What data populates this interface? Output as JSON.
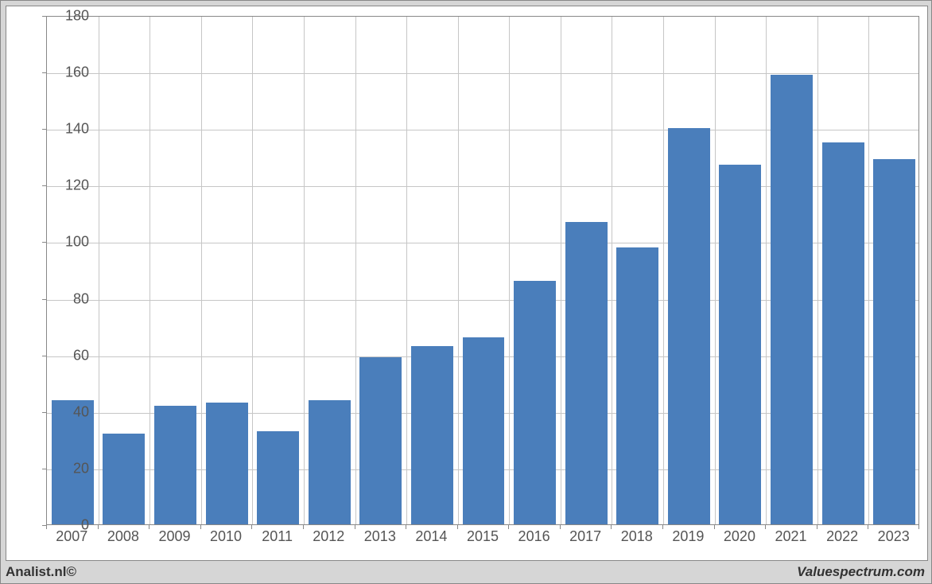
{
  "chart": {
    "type": "bar",
    "background_color": "#d6d6d6",
    "plot_background": "#ffffff",
    "border_color": "#888888",
    "grid_color": "#c6c6c6",
    "bar_color": "#4a7ebb",
    "tick_color": "#555555",
    "font_family": "Arial",
    "ylabel_fontsize": 18,
    "xlabel_fontsize": 18,
    "ylim": [
      0,
      180
    ],
    "ytick_step": 20,
    "yticks": [
      0,
      20,
      40,
      60,
      80,
      100,
      120,
      140,
      160,
      180
    ],
    "categories": [
      "2007",
      "2008",
      "2009",
      "2010",
      "2011",
      "2012",
      "2013",
      "2014",
      "2015",
      "2016",
      "2017",
      "2018",
      "2019",
      "2020",
      "2021",
      "2022",
      "2023"
    ],
    "values": [
      44,
      32,
      42,
      43,
      33,
      44,
      59,
      63,
      66,
      86,
      107,
      98,
      140,
      127,
      159,
      135,
      129
    ],
    "bar_width_ratio": 0.82
  },
  "footer": {
    "left": "Analist.nl©",
    "right": "Valuespectrum.com"
  }
}
